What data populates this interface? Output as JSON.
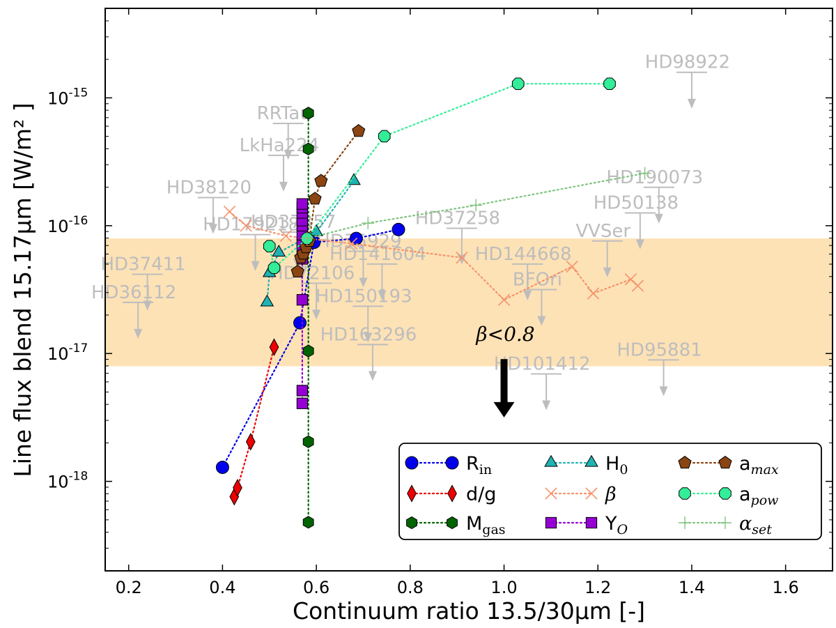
{
  "chart_data": {
    "type": "scatter",
    "xlabel": "Continuum ratio 13.5/30μm [-]",
    "ylabel": "Line flux blend 15.17μm [W/m² ]",
    "xlim": [
      0.15,
      1.7
    ],
    "ylim_log10": [
      -18.7,
      -14.3
    ],
    "y_scale": "log",
    "x_ticks": [
      "0.2",
      "0.4",
      "0.6",
      "0.8",
      "1.0",
      "1.2",
      "1.4",
      "1.6"
    ],
    "x_tick_values": [
      0.2,
      0.4,
      0.6,
      0.8,
      1.0,
      1.2,
      1.4,
      1.6
    ],
    "y_ticks": [
      {
        "base": "10",
        "exp": "-15",
        "log": -15
      },
      {
        "base": "10",
        "exp": "-16",
        "log": -16
      },
      {
        "base": "10",
        "exp": "-17",
        "log": -17
      },
      {
        "base": "10",
        "exp": "-18",
        "log": -18
      }
    ],
    "shaded_band": {
      "log_from": -17.1,
      "log_to": -16.1,
      "color": "#fde2b6"
    },
    "annotation": {
      "text": "β<0.8",
      "x": 1.0,
      "arrow_from_log": -17.0,
      "arrow_to_log": -17.5
    },
    "observed_upper_limits": [
      {
        "name": "HD98922",
        "x": 1.4,
        "ylog": -14.8
      },
      {
        "name": "RRTau",
        "x": 0.54,
        "ylog": -15.2
      },
      {
        "name": "LkHa224",
        "x": 0.53,
        "ylog": -15.45
      },
      {
        "name": "HD190073",
        "x": 1.33,
        "ylog": -15.7
      },
      {
        "name": "HD38120",
        "x": 0.38,
        "ylog": -15.78
      },
      {
        "name": "HD50138",
        "x": 1.29,
        "ylog": -15.9
      },
      {
        "name": "HD179218",
        "x": 0.47,
        "ylog": -16.07
      },
      {
        "name": "HD37357",
        "x": 0.56,
        "ylog": -16.05
      },
      {
        "name": "HD37258",
        "x": 0.91,
        "ylog": -16.02
      },
      {
        "name": "HD35929",
        "x": 0.7,
        "ylog": -16.2
      },
      {
        "name": "HD141604",
        "x": 0.74,
        "ylog": -16.3
      },
      {
        "name": "VVSer",
        "x": 1.22,
        "ylog": -16.12
      },
      {
        "name": "HD144668",
        "x": 1.05,
        "ylog": -16.3
      },
      {
        "name": "HD37411",
        "x": 0.24,
        "ylog": -16.38
      },
      {
        "name": "BFOri",
        "x": 1.08,
        "ylog": -16.5
      },
      {
        "name": "HD72106",
        "x": 0.6,
        "ylog": -16.45
      },
      {
        "name": "HD36112",
        "x": 0.22,
        "ylog": -16.6
      },
      {
        "name": "HD150193",
        "x": 0.71,
        "ylog": -16.63
      },
      {
        "name": "HD163296",
        "x": 0.72,
        "ylog": -16.93
      },
      {
        "name": "HD101412",
        "x": 1.09,
        "ylog": -17.16
      },
      {
        "name": "HD95881",
        "x": 1.34,
        "ylog": -17.05
      }
    ],
    "legend_position": "lower-right",
    "series": [
      {
        "name": "R",
        "sub": "in",
        "subStyle": "roman",
        "color": "#0000ee",
        "marker": "circle",
        "x": [
          0.4,
          0.565,
          0.595,
          0.685,
          0.775
        ],
        "ylog": [
          -17.89,
          -16.76,
          -16.13,
          -16.1,
          -16.03
        ]
      },
      {
        "name": "d/g",
        "sub": "",
        "subStyle": "roman",
        "color": "#ee0000",
        "marker": "diamond",
        "x": [
          0.425,
          0.432,
          0.46,
          0.51
        ],
        "ylog": [
          -18.12,
          -18.05,
          -17.69,
          -16.95
        ]
      },
      {
        "name": "M",
        "sub": "gas",
        "subStyle": "roman",
        "color": "#006400",
        "marker": "hexagon",
        "x": [
          0.583,
          0.583,
          0.583,
          0.583,
          0.583,
          0.583
        ],
        "ylog": [
          -18.32,
          -17.69,
          -16.98,
          -15.4,
          -15.12,
          -15.12
        ]
      },
      {
        "name": "H",
        "sub": "0",
        "subStyle": "roman",
        "color": "#1fb3b3",
        "marker": "triangle",
        "x": [
          0.495,
          0.5,
          0.52,
          0.6,
          0.68
        ],
        "ylog": [
          -16.6,
          -16.37,
          -16.21,
          -16.05,
          -15.65
        ]
      },
      {
        "name": "β",
        "sub": "",
        "subStyle": "italic",
        "color": "#f5926a",
        "marker": "x",
        "x": [
          0.415,
          0.45,
          0.535,
          0.675,
          0.91,
          1.0,
          1.145,
          1.19,
          1.27,
          1.285
        ],
        "ylog": [
          -15.89,
          -16.0,
          -16.08,
          -16.14,
          -16.25,
          -16.58,
          -16.32,
          -16.53,
          -16.42,
          -16.47
        ]
      },
      {
        "name": "Y",
        "sub": "O",
        "subStyle": "italic",
        "color": "#9400d3",
        "marker": "square",
        "x": [
          0.57,
          0.57,
          0.57,
          0.57,
          0.57,
          0.57,
          0.57,
          0.57,
          0.57,
          0.57,
          0.57,
          0.57
        ],
        "ylog": [
          -17.39,
          -17.29,
          -16.58,
          -16.26,
          -16.18,
          -16.12,
          -16.07,
          -16.0,
          -15.96,
          -15.9,
          -15.86,
          -15.83
        ]
      },
      {
        "name": "a",
        "sub": "max",
        "subStyle": "italic",
        "color": "#8b4513",
        "marker": "pentagon",
        "x": [
          0.56,
          0.567,
          0.572,
          0.578,
          0.585,
          0.597,
          0.61,
          0.69
        ],
        "ylog": [
          -16.36,
          -16.25,
          -16.22,
          -16.17,
          -16.12,
          -15.79,
          -15.65,
          -15.26
        ]
      },
      {
        "name": "a",
        "sub": "pow",
        "subStyle": "italic",
        "color": "#33ee99",
        "marker": "octagon",
        "x": [
          0.5,
          0.51,
          0.58,
          0.745,
          1.03,
          1.225
        ],
        "ylog": [
          -16.16,
          -16.33,
          -16.1,
          -15.3,
          -14.89,
          -14.89
        ]
      },
      {
        "name": "α",
        "sub": "set",
        "subStyle": "italic",
        "color": "#7fc47f",
        "marker": "plus",
        "x": [
          0.58,
          0.71,
          0.94,
          1.3
        ],
        "ylog": [
          -16.1,
          -15.98,
          -15.84,
          -15.59
        ]
      }
    ]
  }
}
